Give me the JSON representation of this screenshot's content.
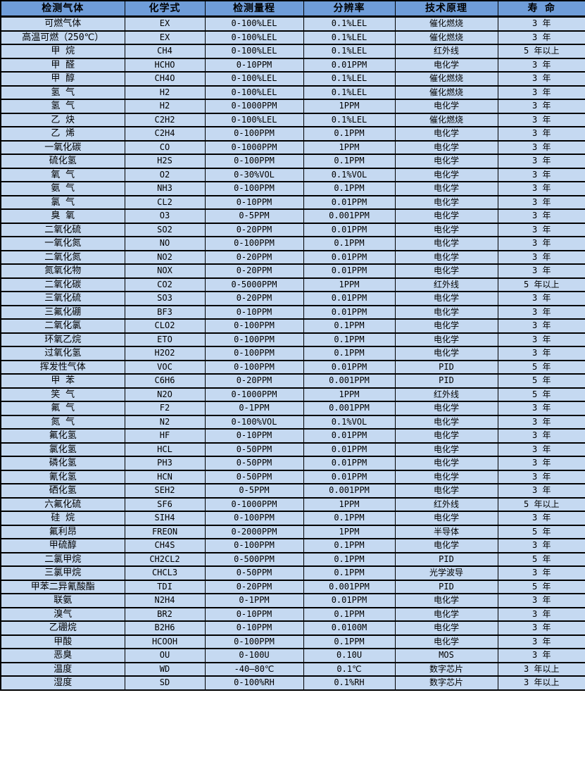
{
  "colors": {
    "header_bg": "#6f9dd9",
    "row_bg": "#c5d9f1",
    "border": "#000000",
    "text": "#000000"
  },
  "table": {
    "columns": [
      {
        "key": "gas",
        "label": "检测气体"
      },
      {
        "key": "formula",
        "label": "化学式"
      },
      {
        "key": "range",
        "label": "检测量程"
      },
      {
        "key": "resolution",
        "label": "分辨率"
      },
      {
        "key": "principle",
        "label": "技术原理"
      },
      {
        "key": "lifespan",
        "label": "寿 命"
      }
    ],
    "rows": [
      {
        "gas": "可燃气体",
        "formula": "EX",
        "range": "0-100%LEL",
        "resolution": "0.1%LEL",
        "principle": "催化燃烧",
        "lifespan": "3 年"
      },
      {
        "gas": "高温可燃（250℃）",
        "formula": "EX",
        "range": "0-100%LEL",
        "resolution": "0.1%LEL",
        "principle": "催化燃烧",
        "lifespan": "3 年"
      },
      {
        "gas": "甲 烷",
        "formula": "CH4",
        "range": "0-100%LEL",
        "resolution": "0.1%LEL",
        "principle": "红外线",
        "lifespan": "5 年以上"
      },
      {
        "gas": "甲 醛",
        "formula": "HCHO",
        "range": "0-10PPM",
        "resolution": "0.01PPM",
        "principle": "电化学",
        "lifespan": "3 年"
      },
      {
        "gas": "甲 醇",
        "formula": "CH4O",
        "range": "0-100%LEL",
        "resolution": "0.1%LEL",
        "principle": "催化燃烧",
        "lifespan": "3 年"
      },
      {
        "gas": "氢 气",
        "formula": "H2",
        "range": "0-100%LEL",
        "resolution": "0.1%LEL",
        "principle": "催化燃烧",
        "lifespan": "3 年"
      },
      {
        "gas": "氢 气",
        "formula": "H2",
        "range": "0-1000PPM",
        "resolution": "1PPM",
        "principle": "电化学",
        "lifespan": "3 年"
      },
      {
        "gas": "乙 炔",
        "formula": "C2H2",
        "range": "0-100%LEL",
        "resolution": "0.1%LEL",
        "principle": "催化燃烧",
        "lifespan": "3 年"
      },
      {
        "gas": "乙 烯",
        "formula": "C2H4",
        "range": "0-100PPM",
        "resolution": "0.1PPM",
        "principle": "电化学",
        "lifespan": "3 年"
      },
      {
        "gas": "一氧化碳",
        "formula": "CO",
        "range": "0-1000PPM",
        "resolution": "1PPM",
        "principle": "电化学",
        "lifespan": "3 年"
      },
      {
        "gas": "硫化氢",
        "formula": "H2S",
        "range": "0-100PPM",
        "resolution": "0.1PPM",
        "principle": "电化学",
        "lifespan": "3 年"
      },
      {
        "gas": "氧 气",
        "formula": "O2",
        "range": "0-30%VOL",
        "resolution": "0.1%VOL",
        "principle": "电化学",
        "lifespan": "3 年"
      },
      {
        "gas": "氨 气",
        "formula": "NH3",
        "range": "0-100PPM",
        "resolution": "0.1PPM",
        "principle": "电化学",
        "lifespan": "3 年"
      },
      {
        "gas": "氯 气",
        "formula": "CL2",
        "range": "0-10PPM",
        "resolution": "0.01PPM",
        "principle": "电化学",
        "lifespan": "3 年"
      },
      {
        "gas": "臭 氧",
        "formula": "O3",
        "range": "0-5PPM",
        "resolution": "0.001PPM",
        "principle": "电化学",
        "lifespan": "3 年"
      },
      {
        "gas": "二氧化硫",
        "formula": "SO2",
        "range": "0-20PPM",
        "resolution": "0.01PPM",
        "principle": "电化学",
        "lifespan": "3 年"
      },
      {
        "gas": "一氧化氮",
        "formula": "NO",
        "range": "0-100PPM",
        "resolution": "0.1PPM",
        "principle": "电化学",
        "lifespan": "3 年"
      },
      {
        "gas": "二氧化氮",
        "formula": "NO2",
        "range": "0-20PPM",
        "resolution": "0.01PPM",
        "principle": "电化学",
        "lifespan": "3 年"
      },
      {
        "gas": "氮氧化物",
        "formula": "NOX",
        "range": "0-20PPM",
        "resolution": "0.01PPM",
        "principle": "电化学",
        "lifespan": "3 年"
      },
      {
        "gas": "二氧化碳",
        "formula": "CO2",
        "range": "0-5000PPM",
        "resolution": "1PPM",
        "principle": "红外线",
        "lifespan": "5 年以上"
      },
      {
        "gas": "三氧化硫",
        "formula": "SO3",
        "range": "0-20PPM",
        "resolution": "0.01PPM",
        "principle": "电化学",
        "lifespan": "3 年"
      },
      {
        "gas": "三氟化硼",
        "formula": "BF3",
        "range": "0-10PPM",
        "resolution": "0.01PPM",
        "principle": "电化学",
        "lifespan": "3 年"
      },
      {
        "gas": "二氧化氯",
        "formula": "CLO2",
        "range": "0-100PPM",
        "resolution": "0.1PPM",
        "principle": "电化学",
        "lifespan": "3 年"
      },
      {
        "gas": "环氧乙烷",
        "formula": "ETO",
        "range": "0-100PPM",
        "resolution": "0.1PPM",
        "principle": "电化学",
        "lifespan": "3 年"
      },
      {
        "gas": "过氧化氢",
        "formula": "H2O2",
        "range": "0-100PPM",
        "resolution": "0.1PPM",
        "principle": "电化学",
        "lifespan": "3 年"
      },
      {
        "gas": "挥发性气体",
        "formula": "VOC",
        "range": "0-100PPM",
        "resolution": "0.01PPM",
        "principle": "PID",
        "lifespan": "5 年"
      },
      {
        "gas": "甲 苯",
        "formula": "C6H6",
        "range": "0-20PPM",
        "resolution": "0.001PPM",
        "principle": "PID",
        "lifespan": "5 年"
      },
      {
        "gas": "笑 气",
        "formula": "N2O",
        "range": "0-1000PPM",
        "resolution": "1PPM",
        "principle": "红外线",
        "lifespan": "5 年"
      },
      {
        "gas": "氟 气",
        "formula": "F2",
        "range": "0-1PPM",
        "resolution": "0.001PPM",
        "principle": "电化学",
        "lifespan": "3 年"
      },
      {
        "gas": "氮 气",
        "formula": "N2",
        "range": "0-100%VOL",
        "resolution": "0.1%VOL",
        "principle": "电化学",
        "lifespan": "3 年"
      },
      {
        "gas": "氟化氢",
        "formula": "HF",
        "range": "0-10PPM",
        "resolution": "0.01PPM",
        "principle": "电化学",
        "lifespan": "3 年"
      },
      {
        "gas": "氯化氢",
        "formula": "HCL",
        "range": "0-50PPM",
        "resolution": "0.01PPM",
        "principle": "电化学",
        "lifespan": "3 年"
      },
      {
        "gas": "磷化氢",
        "formula": "PH3",
        "range": "0-50PPM",
        "resolution": "0.01PPM",
        "principle": "电化学",
        "lifespan": "3 年"
      },
      {
        "gas": "氰化氢",
        "formula": "HCN",
        "range": "0-50PPM",
        "resolution": "0.01PPM",
        "principle": "电化学",
        "lifespan": "3 年"
      },
      {
        "gas": "硒化氢",
        "formula": "SEH2",
        "range": "0-5PPM",
        "resolution": "0.001PPM",
        "principle": "电化学",
        "lifespan": "3 年"
      },
      {
        "gas": "六氟化硫",
        "formula": "SF6",
        "range": "0-1000PPM",
        "resolution": "1PPM",
        "principle": "红外线",
        "lifespan": "5 年以上"
      },
      {
        "gas": "硅 烷",
        "formula": "SIH4",
        "range": "0-100PPM",
        "resolution": "0.1PPM",
        "principle": "电化学",
        "lifespan": "3 年"
      },
      {
        "gas": "氟利昂",
        "formula": "FREON",
        "range": "0-2000PPM",
        "resolution": "1PPM",
        "principle": "半导体",
        "lifespan": "5 年"
      },
      {
        "gas": "甲硫醇",
        "formula": "CH4S",
        "range": "0-100PPM",
        "resolution": "0.1PPM",
        "principle": "电化学",
        "lifespan": "3 年"
      },
      {
        "gas": "二氯甲烷",
        "formula": "CH2CL2",
        "range": "0-500PPM",
        "resolution": "0.1PPM",
        "principle": "PID",
        "lifespan": "5 年"
      },
      {
        "gas": "三氯甲烷",
        "formula": "CHCL3",
        "range": "0-50PPM",
        "resolution": "0.1PPM",
        "principle": "光学波导",
        "lifespan": "3 年"
      },
      {
        "gas": "甲苯二异氰酸酯",
        "formula": "TDI",
        "range": "0-20PPM",
        "resolution": "0.001PPM",
        "principle": "PID",
        "lifespan": "5 年"
      },
      {
        "gas": "联氨",
        "formula": "N2H4",
        "range": "0-1PPM",
        "resolution": "0.01PPM",
        "principle": "电化学",
        "lifespan": "3 年"
      },
      {
        "gas": "溴气",
        "formula": "BR2",
        "range": "0-10PPM",
        "resolution": "0.1PPM",
        "principle": "电化学",
        "lifespan": "3 年"
      },
      {
        "gas": "乙硼烷",
        "formula": "B2H6",
        "range": "0-10PPM",
        "resolution": "0.0100M",
        "principle": "电化学",
        "lifespan": "3 年"
      },
      {
        "gas": "甲酸",
        "formula": "HCOOH",
        "range": "0-100PPM",
        "resolution": "0.1PPM",
        "principle": "电化学",
        "lifespan": "3 年"
      },
      {
        "gas": "恶臭",
        "formula": "OU",
        "range": "0-100U",
        "resolution": "0.10U",
        "principle": "MOS",
        "lifespan": "3 年"
      },
      {
        "gas": "温度",
        "formula": "WD",
        "range": "-40—80℃",
        "resolution": "0.1℃",
        "principle": "数字芯片",
        "lifespan": "3 年以上"
      },
      {
        "gas": "湿度",
        "formula": "SD",
        "range": "0-100%RH",
        "resolution": "0.1%RH",
        "principle": "数字芯片",
        "lifespan": "3 年以上"
      }
    ]
  }
}
